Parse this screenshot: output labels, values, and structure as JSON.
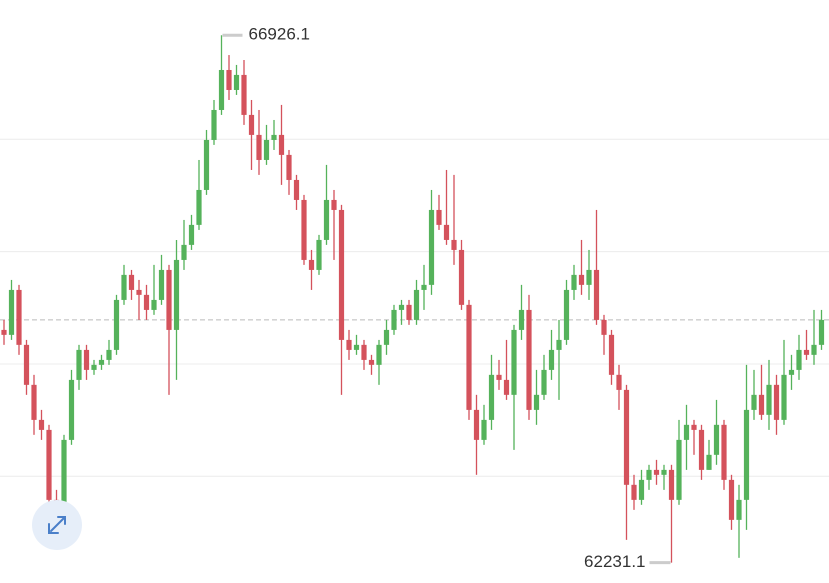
{
  "chart_data": {
    "type": "candlestick",
    "ylim": [
      62050,
      67240
    ],
    "grid_levels": [
      63000,
      64000,
      65000,
      66000
    ],
    "up_color": "#55b25b",
    "down_color": "#d4525c",
    "max_label": "66926.1",
    "min_label": "62231.1",
    "open": [
      64303,
      64259,
      64659,
      64170,
      63814,
      63502,
      63413,
      62790,
      62746,
      63324,
      63858,
      64125,
      63947,
      63992,
      64036,
      64125,
      64570,
      64793,
      64659,
      64615,
      64481,
      64570,
      64837,
      64303,
      64926,
      65060,
      65238,
      65549,
      65994,
      66261,
      66617,
      66439,
      66573,
      66217,
      66039,
      65816,
      65994,
      66039,
      65861,
      65638,
      65460,
      64926,
      64837,
      65104,
      65460,
      65371,
      64214,
      64125,
      64170,
      64036,
      63992,
      64170,
      64303,
      64481,
      64526,
      64392,
      64659,
      64704,
      65371,
      65238,
      65104,
      65015,
      64526,
      63591,
      63324,
      63502,
      63903,
      63858,
      63725,
      64303,
      64481,
      63591,
      63725,
      63947,
      64125,
      64214,
      64659,
      64793,
      64704,
      64837,
      64392,
      64259,
      63903,
      63769,
      62924,
      62790,
      62968,
      63057,
      63013,
      63057,
      62790,
      63324,
      63458,
      63413,
      63057,
      63191,
      63458,
      62968,
      62612,
      62790,
      63591,
      63725,
      63547,
      63814,
      63502,
      63903,
      63947,
      64125,
      64081,
      64170
    ],
    "high": [
      64392,
      64748,
      64704,
      64214,
      63903,
      63591,
      63458,
      62879,
      63369,
      63947,
      64170,
      64170,
      64036,
      64081,
      64214,
      64615,
      64882,
      64837,
      64748,
      64704,
      64882,
      64971,
      64882,
      65104,
      65282,
      65327,
      65816,
      66083,
      66350,
      66926.1,
      66750,
      66662,
      66706,
      66350,
      66261,
      66128,
      66172,
      66306,
      65905,
      65683,
      65505,
      65015,
      65149,
      65772,
      65549,
      65416,
      64303,
      64259,
      64214,
      64081,
      64214,
      64392,
      64526,
      64570,
      64570,
      64748,
      64882,
      65549,
      65505,
      65727,
      65683,
      65104,
      64570,
      63725,
      63636,
      64081,
      64036,
      64214,
      64348,
      64704,
      64615,
      63947,
      64081,
      64303,
      64392,
      64748,
      64882,
      65104,
      65015,
      65371,
      64437,
      64303,
      63992,
      63814,
      63013,
      63057,
      63102,
      63146,
      63102,
      63102,
      63502,
      63636,
      63502,
      63458,
      63324,
      63680,
      63502,
      63013,
      62924,
      63992,
      63947,
      63992,
      64036,
      63903,
      64214,
      64081,
      64259,
      64303,
      64481,
      64481
    ],
    "low": [
      64170,
      64214,
      64081,
      63725,
      63369,
      63324,
      62701,
      62568,
      62657,
      63280,
      63769,
      63858,
      63903,
      63947,
      63992,
      64081,
      64526,
      64570,
      64392,
      64392,
      64437,
      64526,
      63725,
      63858,
      64837,
      65015,
      65193,
      65505,
      65950,
      66217,
      66350,
      66395,
      66128,
      65727,
      65683,
      65772,
      65905,
      65594,
      65505,
      65371,
      64882,
      64659,
      64793,
      65060,
      64926,
      63725,
      64036,
      64081,
      63947,
      63903,
      63814,
      64081,
      64259,
      64348,
      64348,
      64348,
      64481,
      64615,
      65193,
      65060,
      64882,
      64481,
      63502,
      63013,
      63280,
      63413,
      63769,
      63680,
      63235,
      64214,
      63502,
      63458,
      63680,
      63858,
      63680,
      64170,
      64570,
      64615,
      64570,
      64348,
      64081,
      63814,
      63591,
      62434,
      62701,
      62746,
      62879,
      62924,
      62879,
      62231.1,
      62746,
      63057,
      63191,
      62968,
      63057,
      63102,
      62879,
      62523,
      62274,
      62523,
      63502,
      63502,
      63413,
      63369,
      63458,
      63769,
      63858,
      64036,
      63992,
      64125
    ],
    "close": [
      64259,
      64659,
      64170,
      63814,
      63502,
      63413,
      62790,
      62746,
      63324,
      63858,
      64125,
      63947,
      63992,
      64036,
      64125,
      64570,
      64793,
      64659,
      64615,
      64481,
      64570,
      64837,
      64303,
      64926,
      65060,
      65238,
      65549,
      65994,
      66261,
      66617,
      66439,
      66573,
      66217,
      66039,
      65816,
      65994,
      66039,
      65861,
      65638,
      65460,
      64926,
      64837,
      65104,
      65460,
      65371,
      64214,
      64125,
      64170,
      64036,
      63992,
      64170,
      64303,
      64481,
      64526,
      64392,
      64659,
      64704,
      65371,
      65238,
      65104,
      65015,
      64526,
      63591,
      63324,
      63502,
      63903,
      63858,
      63725,
      64303,
      64481,
      63591,
      63725,
      63947,
      64125,
      64214,
      64659,
      64793,
      64704,
      64837,
      64392,
      64259,
      63903,
      63769,
      62924,
      62790,
      62968,
      63057,
      63013,
      63057,
      62790,
      63324,
      63458,
      63413,
      63057,
      63191,
      63458,
      62968,
      62612,
      62790,
      63591,
      63725,
      63547,
      63814,
      63502,
      63903,
      63947,
      64125,
      64081,
      64170,
      64392
    ]
  }
}
